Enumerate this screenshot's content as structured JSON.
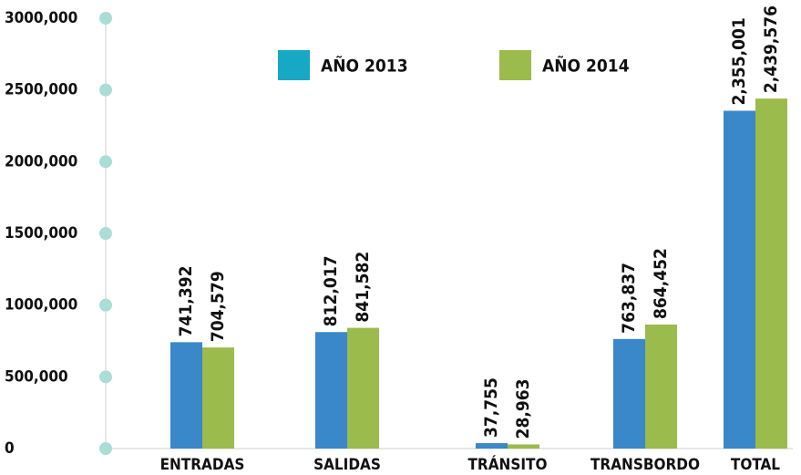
{
  "chart_data": {
    "type": "bar",
    "categories": [
      "ENTRADAS",
      "SALIDAS",
      "TRÁNSITO",
      "TRANSBORDO",
      "TOTAL"
    ],
    "series": [
      {
        "name": "AÑO 2013",
        "color": "#3a87c9",
        "legend_color": "#17a8c4",
        "values": [
          741392,
          812017,
          37755,
          763837,
          2355001
        ],
        "value_labels": [
          "741,392",
          "812,017",
          "37,755",
          "763,837",
          "2,355,001"
        ]
      },
      {
        "name": "AÑO 2014",
        "color": "#9bbb4c",
        "legend_color": "#9bbb4c",
        "values": [
          704579,
          841582,
          28963,
          864452,
          2439576
        ],
        "value_labels": [
          "704,579",
          "841,582",
          "28,963",
          "864,452",
          "2,439,576"
        ]
      }
    ],
    "ylim": [
      0,
      3000000
    ],
    "yticks": [
      0,
      {
        "value": 500000,
        "label": "500,000"
      },
      {
        "value": 1000000,
        "label": "1000,000"
      },
      {
        "value": 1500000,
        "label": "1500,000"
      },
      {
        "value": 2000000,
        "label": "2000,000"
      },
      {
        "value": 2500000,
        "label": "2500,000"
      },
      {
        "value": 3000000,
        "label": "3000,000"
      }
    ]
  }
}
